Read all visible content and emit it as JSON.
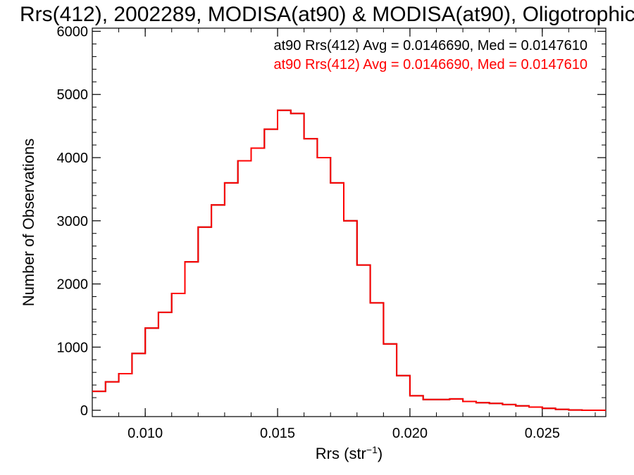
{
  "chart_data": {
    "type": "line",
    "title": "Rrs(412), 2002289, MODISA(at90) & MODISA(at90), Oligotrophic",
    "xlabel": "Rrs (str",
    "xlabel_sup": "−1",
    "xlabel_close": ")",
    "ylabel": "Number of Observations",
    "xlim": [
      0.008,
      0.0274
    ],
    "ylim": [
      -100,
      6050
    ],
    "x_ticks": [
      0.01,
      0.015,
      0.02,
      0.025
    ],
    "x_tick_labels": [
      "0.010",
      "0.015",
      "0.020",
      "0.025"
    ],
    "y_ticks": [
      0,
      1000,
      2000,
      3000,
      4000,
      5000,
      6000
    ],
    "y_tick_labels": [
      "0",
      "1000",
      "2000",
      "3000",
      "4000",
      "5000",
      "6000"
    ],
    "grid": false,
    "annotations": [
      {
        "text": "at90 Rrs(412) Avg = 0.0146690, Med = 0.0147610",
        "color": "#000000"
      },
      {
        "text": "at90 Rrs(412) Avg = 0.0146690, Med = 0.0147610",
        "color": "#ff0000"
      }
    ],
    "series": [
      {
        "color": "#000000",
        "x": [
          0.008,
          0.0085,
          0.009,
          0.0095,
          0.01,
          0.0105,
          0.011,
          0.0115,
          0.012,
          0.0125,
          0.013,
          0.0135,
          0.014,
          0.0145,
          0.015,
          0.0155,
          0.016,
          0.0165,
          0.017,
          0.0175,
          0.018,
          0.0185,
          0.019,
          0.0195,
          0.02,
          0.0205,
          0.021,
          0.0215,
          0.022,
          0.0225,
          0.023,
          0.0235,
          0.024,
          0.0245,
          0.025,
          0.0255,
          0.026,
          0.0265,
          0.027,
          0.0274
        ],
        "y": [
          300,
          450,
          580,
          900,
          1300,
          1550,
          1850,
          2350,
          2900,
          3250,
          3600,
          3950,
          4150,
          4450,
          4750,
          4700,
          4300,
          4000,
          3600,
          3000,
          2300,
          1700,
          1050,
          550,
          230,
          170,
          170,
          180,
          140,
          120,
          110,
          90,
          70,
          50,
          30,
          15,
          5,
          0,
          0,
          0
        ]
      },
      {
        "color": "#ff0000",
        "x": [
          0.008,
          0.0085,
          0.009,
          0.0095,
          0.01,
          0.0105,
          0.011,
          0.0115,
          0.012,
          0.0125,
          0.013,
          0.0135,
          0.014,
          0.0145,
          0.015,
          0.0155,
          0.016,
          0.0165,
          0.017,
          0.0175,
          0.018,
          0.0185,
          0.019,
          0.0195,
          0.02,
          0.0205,
          0.021,
          0.0215,
          0.022,
          0.0225,
          0.023,
          0.0235,
          0.024,
          0.0245,
          0.025,
          0.0255,
          0.026,
          0.0265,
          0.027,
          0.0274
        ],
        "y": [
          300,
          450,
          580,
          900,
          1300,
          1550,
          1850,
          2350,
          2900,
          3250,
          3600,
          3950,
          4150,
          4450,
          4750,
          4700,
          4300,
          4000,
          3600,
          3000,
          2300,
          1700,
          1050,
          550,
          230,
          170,
          170,
          180,
          140,
          120,
          110,
          90,
          70,
          50,
          30,
          15,
          5,
          0,
          0,
          0
        ]
      }
    ]
  }
}
